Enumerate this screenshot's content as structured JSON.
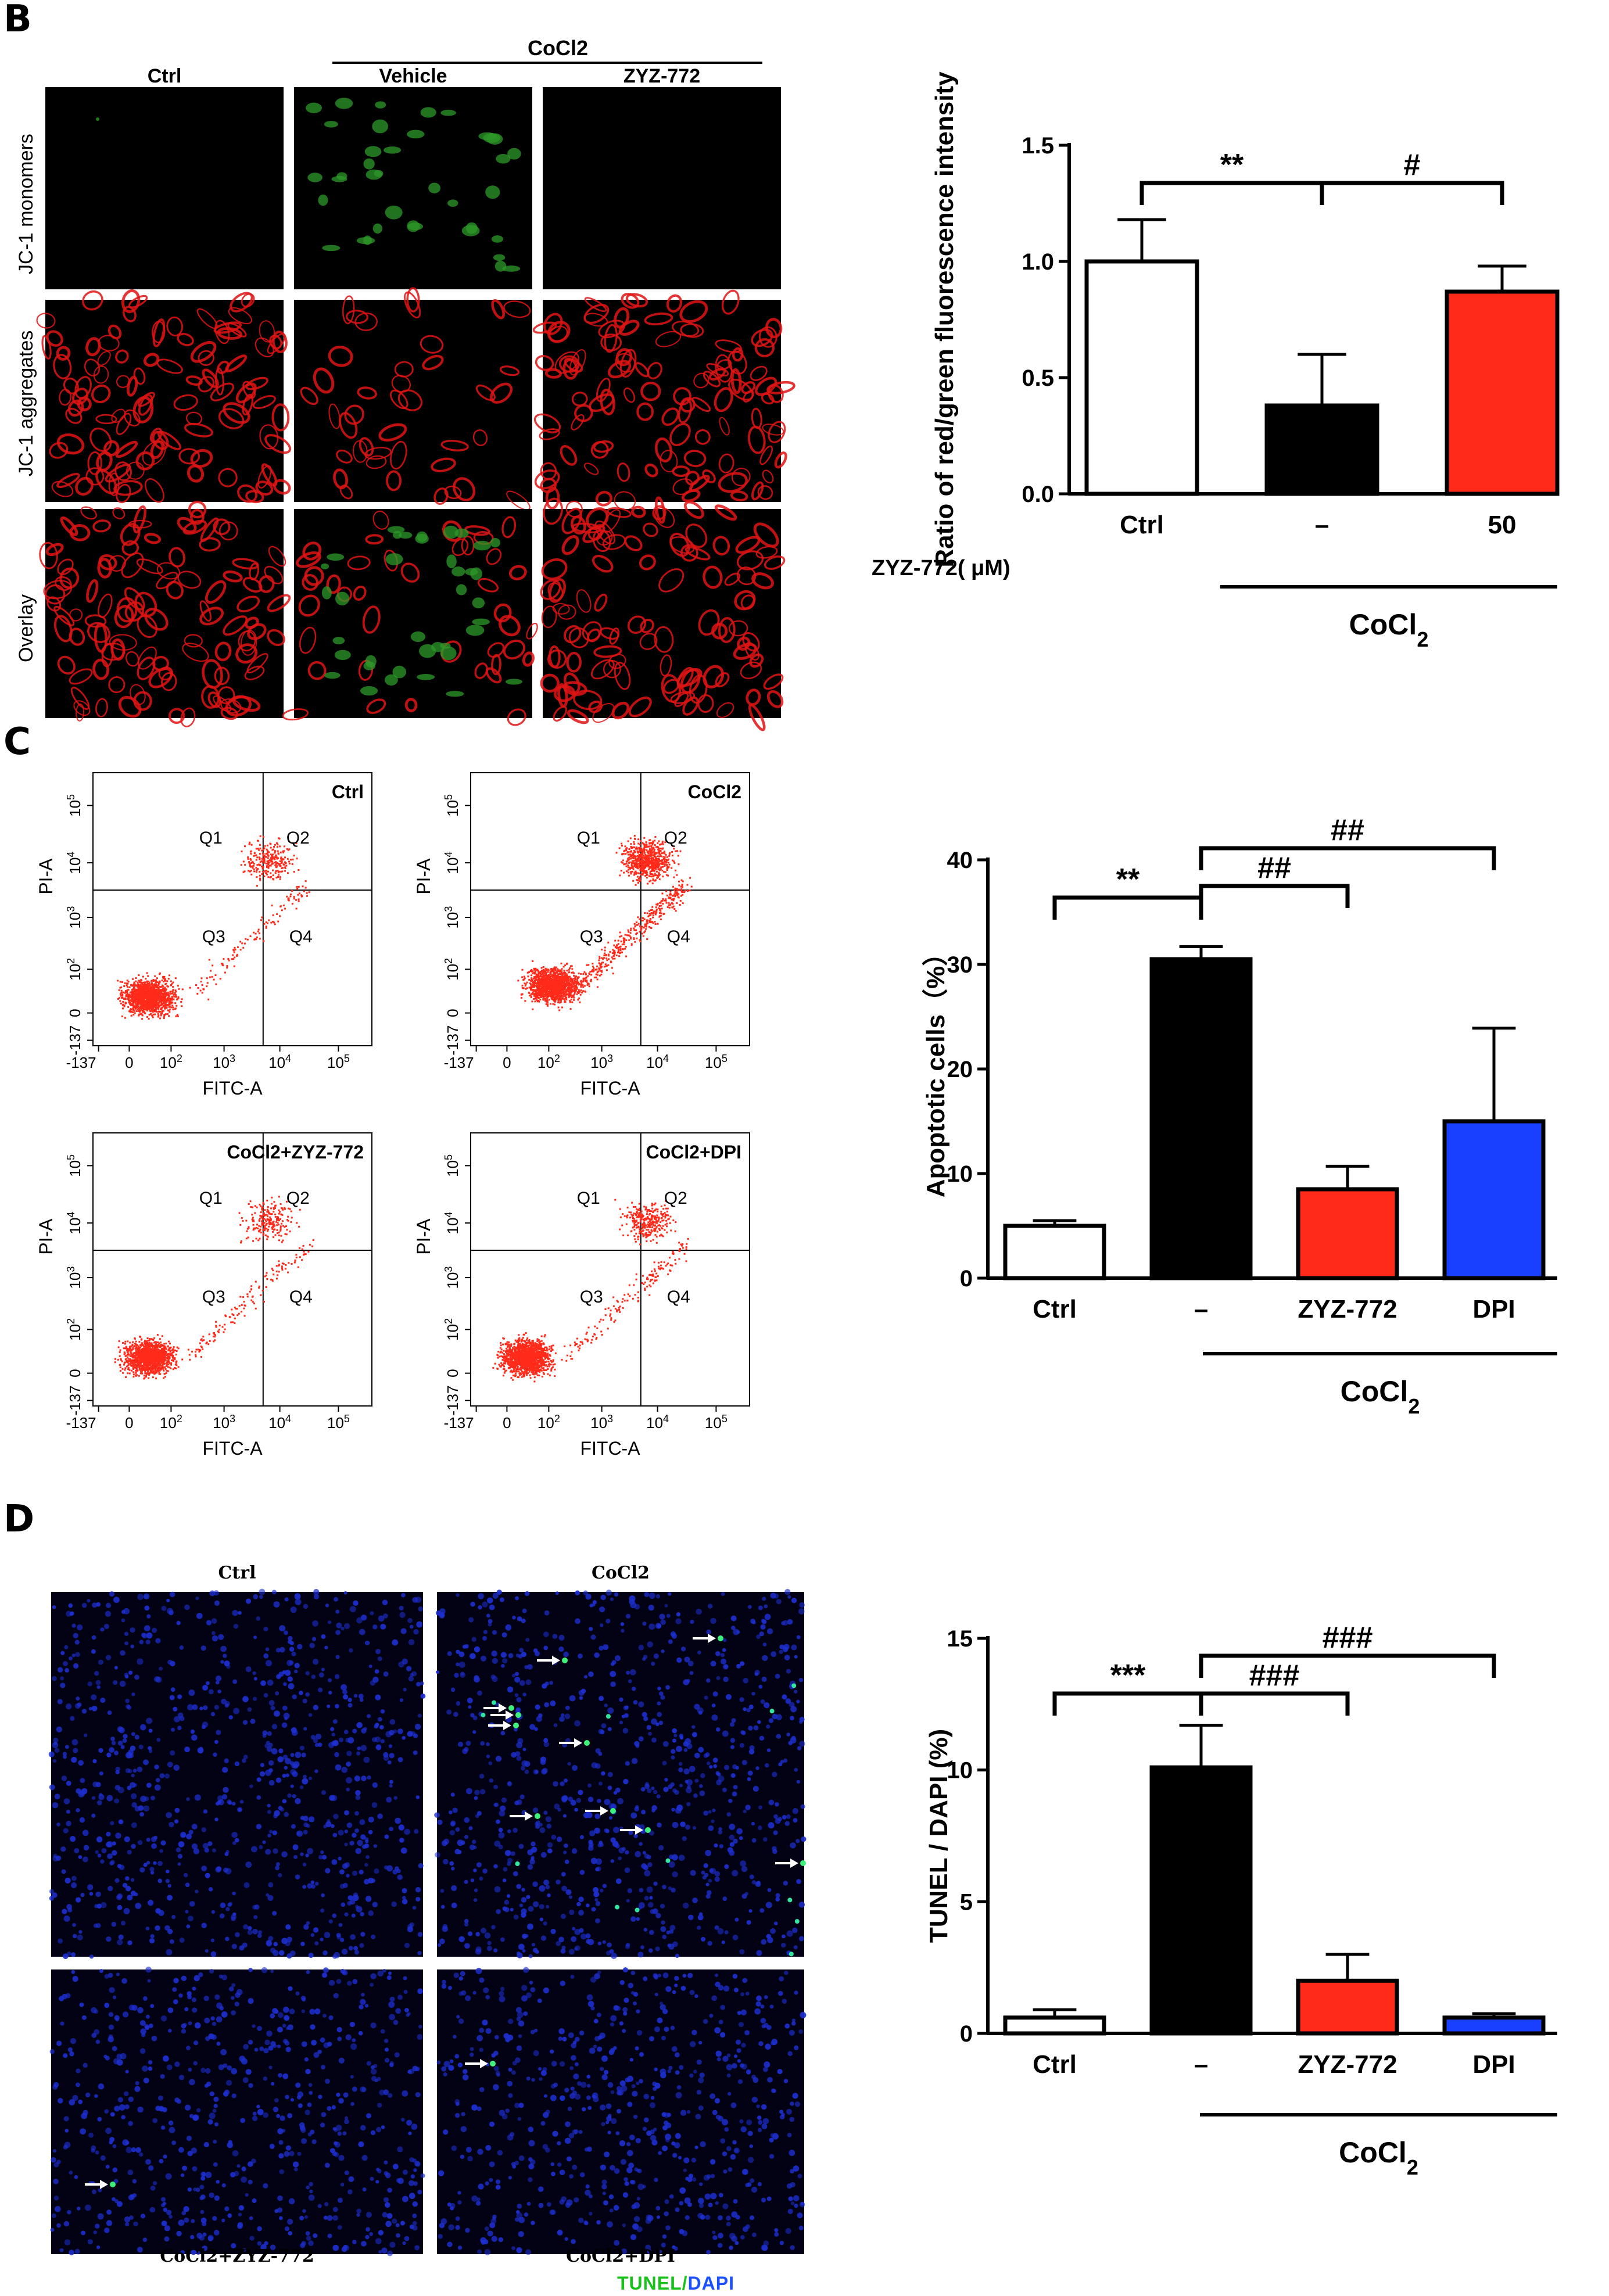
{
  "panels": {
    "B": {
      "letter": "B",
      "cocl2_label": "CoCl2",
      "col_headers": [
        "Ctrl",
        "Vehicle",
        "ZYZ-772"
      ],
      "row_labels": [
        "JC-1 monomers",
        "JC-1 aggregates",
        "Overlay"
      ],
      "chart_data": {
        "type": "bar",
        "categories": [
          "Ctrl",
          "–",
          "50"
        ],
        "values": [
          1.0,
          0.38,
          0.87
        ],
        "errors": [
          0.18,
          0.22,
          0.11
        ],
        "colors": [
          "#ffffff",
          "#000000",
          "#ff2a1a"
        ],
        "ylabel": "Ratio of  red/green fluorescence intensity",
        "ylim": [
          0,
          1.5
        ],
        "yticks": [
          "0.0",
          "0.5",
          "1.0",
          "1.5"
        ],
        "dose_label": "ZYZ-772( μM)",
        "group_label": "CoCl2",
        "annotations": [
          {
            "text": "**",
            "from": 0,
            "to": 1
          },
          {
            "text": "#",
            "from": 1,
            "to": 2
          }
        ]
      }
    },
    "C": {
      "letter": "C",
      "flow_plots": [
        {
          "title": "Ctrl"
        },
        {
          "title": "CoCl2"
        },
        {
          "title": "CoCl2+ZYZ-772"
        },
        {
          "title": "CoCl2+DPI"
        }
      ],
      "flow_axes": {
        "xlabel": "FITC-A",
        "ylabel": "PI-A",
        "x_ticks": [
          "-137",
          "0",
          "10",
          "10",
          "10",
          "10"
        ],
        "x_exps": [
          "",
          "",
          "2",
          "3",
          "4",
          "5"
        ],
        "y_ticks": [
          "-137",
          "0",
          "10",
          "10",
          "10",
          "10"
        ],
        "y_exps": [
          "",
          "",
          "2",
          "3",
          "4",
          "5"
        ],
        "quadrants": [
          "Q1",
          "Q2",
          "Q3",
          "Q4"
        ]
      },
      "chart_data": {
        "type": "bar",
        "categories": [
          "Ctrl",
          "–",
          "ZYZ-772",
          "DPI"
        ],
        "values": [
          5.0,
          30.5,
          8.5,
          15.0
        ],
        "errors": [
          0.5,
          1.2,
          2.2,
          8.9
        ],
        "colors": [
          "#ffffff",
          "#000000",
          "#ff2a1a",
          "#1a40ff"
        ],
        "ylabel": "Apoptotic  cells（%）",
        "ylim": [
          0,
          40
        ],
        "yticks": [
          "0",
          "10",
          "20",
          "30",
          "40"
        ],
        "group_label": "CoCl2",
        "annotations": [
          {
            "text": "**",
            "from": 0,
            "to": 1
          },
          {
            "text": "##",
            "from": 1,
            "to": 2
          },
          {
            "text": "##",
            "from": 1,
            "to": 3
          }
        ]
      }
    },
    "D": {
      "letter": "D",
      "image_labels": [
        "Ctrl",
        "CoCl2",
        "CoCl2+ZYZ-772",
        "CoCl2+DPI"
      ],
      "stain_tunel": "TUNEL",
      "stain_sep": "/",
      "stain_dapi": "DAPI",
      "chart_data": {
        "type": "bar",
        "categories": [
          "Ctrl",
          "–",
          "ZYZ-772",
          "DPI"
        ],
        "values": [
          0.6,
          10.1,
          2.0,
          0.6
        ],
        "errors": [
          0.3,
          1.6,
          1.0,
          0.15
        ],
        "colors": [
          "#ffffff",
          "#000000",
          "#ff2a1a",
          "#1a40ff"
        ],
        "ylabel": "TUNEL / DAPI (%)",
        "ylim": [
          0,
          15
        ],
        "yticks": [
          "0",
          "5",
          "10",
          "15"
        ],
        "group_label": "CoCl2",
        "annotations": [
          {
            "text": "***",
            "from": 0,
            "to": 1
          },
          {
            "text": "###",
            "from": 1,
            "to": 2
          },
          {
            "text": "###",
            "from": 1,
            "to": 3
          }
        ]
      }
    }
  }
}
